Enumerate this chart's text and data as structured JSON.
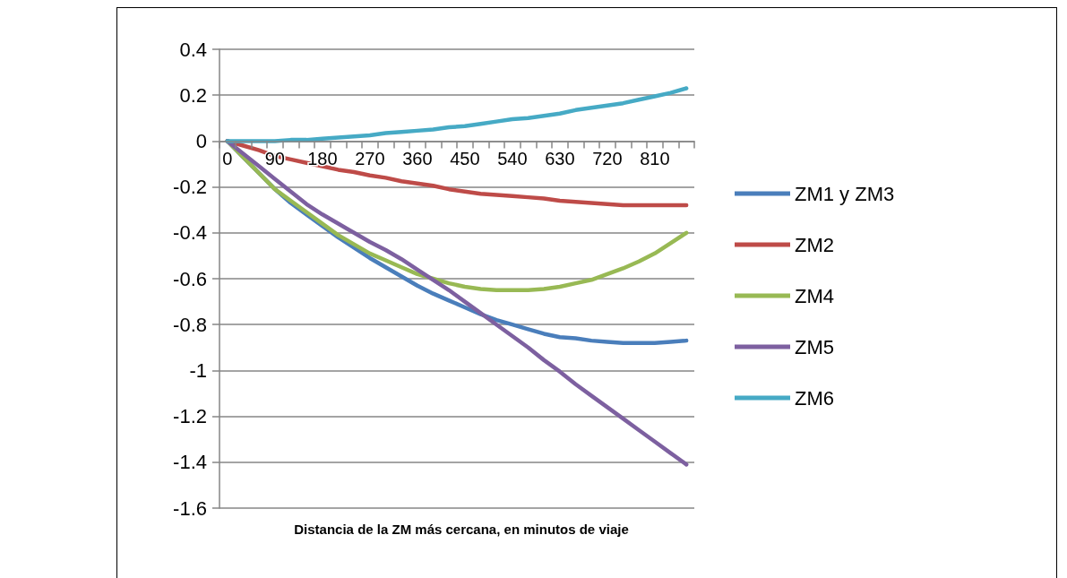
{
  "chart_data": {
    "type": "line",
    "xlabel": "Distancia de la ZM más cercana, en minutos de viaje",
    "categories": [
      "0",
      null,
      null,
      "90",
      null,
      null,
      "180",
      null,
      null,
      "270",
      null,
      null,
      "360",
      null,
      null,
      "450",
      null,
      null,
      "540",
      null,
      null,
      "630",
      null,
      null,
      "720",
      null,
      null,
      "810",
      null,
      null
    ],
    "series": [
      {
        "name": "ZM1 y ZM3",
        "color": "#4a7ebb",
        "values": [
          0,
          -0.07,
          -0.14,
          -0.21,
          -0.27,
          -0.32,
          -0.37,
          -0.42,
          -0.465,
          -0.51,
          -0.55,
          -0.59,
          -0.63,
          -0.665,
          -0.695,
          -0.725,
          -0.755,
          -0.78,
          -0.8,
          -0.82,
          -0.84,
          -0.855,
          -0.86,
          -0.87,
          -0.875,
          -0.88,
          -0.88,
          -0.88,
          -0.875,
          -0.87
        ]
      },
      {
        "name": "ZM2",
        "color": "#be4b48",
        "values": [
          0,
          -0.02,
          -0.04,
          -0.065,
          -0.08,
          -0.095,
          -0.11,
          -0.125,
          -0.135,
          -0.15,
          -0.16,
          -0.175,
          -0.185,
          -0.195,
          -0.21,
          -0.22,
          -0.23,
          -0.235,
          -0.24,
          -0.245,
          -0.25,
          -0.26,
          -0.265,
          -0.27,
          -0.275,
          -0.28,
          -0.28,
          -0.28,
          -0.28,
          -0.28
        ]
      },
      {
        "name": "ZM4",
        "color": "#98b954",
        "values": [
          0,
          -0.07,
          -0.14,
          -0.21,
          -0.26,
          -0.31,
          -0.36,
          -0.41,
          -0.45,
          -0.49,
          -0.52,
          -0.55,
          -0.58,
          -0.6,
          -0.62,
          -0.635,
          -0.645,
          -0.65,
          -0.65,
          -0.65,
          -0.645,
          -0.635,
          -0.62,
          -0.605,
          -0.58,
          -0.555,
          -0.525,
          -0.49,
          -0.445,
          -0.4
        ]
      },
      {
        "name": "ZM5",
        "color": "#7d60a0",
        "values": [
          0,
          -0.055,
          -0.11,
          -0.165,
          -0.22,
          -0.275,
          -0.32,
          -0.36,
          -0.4,
          -0.44,
          -0.475,
          -0.515,
          -0.56,
          -0.605,
          -0.65,
          -0.7,
          -0.75,
          -0.8,
          -0.85,
          -0.9,
          -0.955,
          -1.005,
          -1.06,
          -1.11,
          -1.16,
          -1.21,
          -1.26,
          -1.31,
          -1.36,
          -1.41
        ]
      },
      {
        "name": "ZM6",
        "color": "#46aac5",
        "values": [
          0,
          0,
          0,
          0,
          0.005,
          0.005,
          0.01,
          0.015,
          0.02,
          0.025,
          0.035,
          0.04,
          0.045,
          0.05,
          0.06,
          0.065,
          0.075,
          0.085,
          0.095,
          0.1,
          0.11,
          0.12,
          0.135,
          0.145,
          0.155,
          0.165,
          0.18,
          0.195,
          0.21,
          0.23
        ]
      }
    ],
    "ylim": [
      -1.6,
      0.4
    ],
    "yticks": [
      -1.6,
      -1.4,
      -1.2,
      -1,
      -0.8,
      -0.6,
      -0.4,
      -0.2,
      0,
      0.2,
      0.4
    ],
    "grid": "y",
    "legend": "right",
    "marker": "none",
    "line_style": "solid"
  }
}
